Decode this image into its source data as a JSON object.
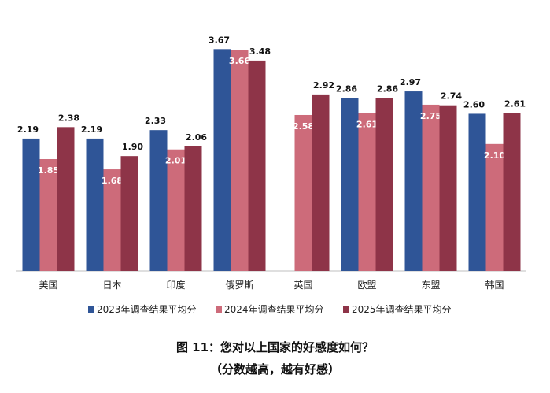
{
  "chart_data": {
    "type": "bar",
    "categories": [
      "美国",
      "日本",
      "印度",
      "俄罗斯",
      "英国",
      "欧盟",
      "东盟",
      "韩国"
    ],
    "series": [
      {
        "name": "2023年调查结果平均分",
        "color": "#2F5597",
        "values": [
          2.19,
          2.19,
          2.33,
          3.67,
          null,
          2.86,
          2.97,
          2.6
        ]
      },
      {
        "name": "2024年调查结果平均分",
        "color": "#CD6B7A",
        "values": [
          1.85,
          1.68,
          2.01,
          3.66,
          2.58,
          2.61,
          2.75,
          2.1
        ]
      },
      {
        "name": "2025年调查结果平均分",
        "color": "#8E3448",
        "values": [
          2.38,
          1.9,
          2.06,
          3.48,
          2.92,
          2.86,
          2.74,
          2.61
        ]
      }
    ],
    "ylim": [
      0,
      4
    ],
    "grid": false,
    "legend": "bottom",
    "title": "图 11：您对以上国家的好感度如何？",
    "subtitle": "（分数越高，越有好感）"
  }
}
